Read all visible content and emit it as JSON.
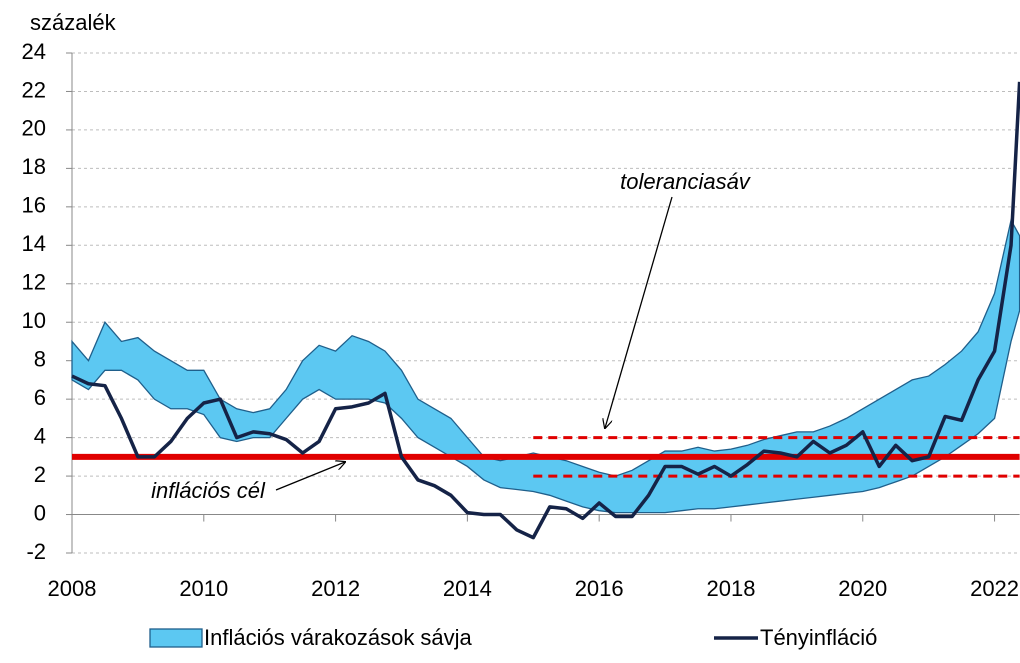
{
  "chart_data": {
    "type": "band-line",
    "y_unit": "százalék",
    "xlim": [
      2008,
      2022.38
    ],
    "xticks": [
      2008,
      2010,
      2012,
      2014,
      2016,
      2018,
      2020,
      2022
    ],
    "ylim": [
      -2,
      24
    ],
    "yticks": [
      -2,
      0,
      2,
      4,
      6,
      8,
      10,
      12,
      14,
      16,
      18,
      20,
      22,
      24
    ],
    "grid": true,
    "x": [
      2008,
      2008.25,
      2008.5,
      2008.75,
      2009,
      2009.25,
      2009.5,
      2009.75,
      2010,
      2010.25,
      2010.5,
      2010.75,
      2011,
      2011.25,
      2011.5,
      2011.75,
      2012,
      2012.25,
      2012.5,
      2012.75,
      2013,
      2013.25,
      2013.5,
      2013.75,
      2014,
      2014.25,
      2014.5,
      2014.75,
      2015,
      2015.25,
      2015.5,
      2015.75,
      2016,
      2016.25,
      2016.5,
      2016.75,
      2017,
      2017.25,
      2017.5,
      2017.75,
      2018,
      2018.25,
      2018.5,
      2018.75,
      2019,
      2019.25,
      2019.5,
      2019.75,
      2020,
      2020.25,
      2020.5,
      2020.75,
      2021,
      2021.25,
      2021.5,
      2021.75,
      2022,
      2022.25,
      2022.38
    ],
    "series": [
      {
        "name": "Inflációs várakozások sávja",
        "kind": "band",
        "color": "#5cc8f2",
        "edge_color": "#1f5f8b",
        "upper": [
          9.0,
          8.0,
          10.0,
          9.0,
          9.2,
          8.5,
          8.0,
          7.5,
          7.5,
          6.0,
          5.5,
          5.3,
          5.5,
          6.5,
          8.0,
          8.8,
          8.5,
          9.3,
          9.0,
          8.5,
          7.5,
          6.0,
          5.5,
          5.0,
          4.0,
          3.0,
          2.8,
          3.0,
          3.2,
          3.0,
          2.8,
          2.5,
          2.2,
          2.0,
          2.3,
          2.8,
          3.3,
          3.3,
          3.5,
          3.3,
          3.4,
          3.6,
          3.9,
          4.1,
          4.3,
          4.3,
          4.6,
          5.0,
          5.5,
          6.0,
          6.5,
          7.0,
          7.2,
          7.8,
          8.5,
          9.5,
          11.5,
          15.3,
          14.5
        ],
        "lower": [
          7.0,
          6.5,
          7.5,
          7.5,
          7.0,
          6.0,
          5.5,
          5.5,
          5.2,
          4.0,
          3.8,
          4.0,
          4.0,
          5.0,
          6.0,
          6.5,
          6.0,
          6.0,
          6.0,
          5.8,
          5.0,
          4.0,
          3.5,
          3.0,
          2.5,
          1.8,
          1.4,
          1.3,
          1.2,
          1.0,
          0.7,
          0.4,
          0.2,
          0.1,
          0.1,
          0.1,
          0.1,
          0.2,
          0.3,
          0.3,
          0.4,
          0.5,
          0.6,
          0.7,
          0.8,
          0.9,
          1.0,
          1.1,
          1.2,
          1.4,
          1.7,
          2.0,
          2.5,
          3.0,
          3.6,
          4.2,
          5.0,
          9.0,
          10.6
        ]
      },
      {
        "name": "Tényinfláció",
        "kind": "line",
        "color": "#152347",
        "values": [
          7.2,
          6.8,
          6.7,
          5.0,
          3.0,
          3.0,
          3.8,
          5.0,
          5.8,
          6.0,
          4.0,
          4.3,
          4.2,
          3.9,
          3.2,
          3.8,
          5.5,
          5.6,
          5.8,
          6.3,
          3.0,
          1.8,
          1.5,
          1.0,
          0.1,
          0.0,
          0.0,
          -0.8,
          -1.2,
          0.4,
          0.3,
          -0.2,
          0.6,
          -0.1,
          -0.1,
          1.0,
          2.5,
          2.5,
          2.1,
          2.5,
          2.0,
          2.6,
          3.3,
          3.2,
          3.0,
          3.8,
          3.2,
          3.6,
          4.3,
          2.5,
          3.6,
          2.8,
          3.0,
          5.1,
          4.9,
          7.0,
          8.5,
          14.0,
          22.5
        ]
      }
    ],
    "target": {
      "label": "inflációs cél",
      "value": 3,
      "color": "#e00000"
    },
    "tolerance": {
      "label": "toleranciasáv",
      "values": [
        2,
        4
      ],
      "start": 2015,
      "color": "#e00000"
    }
  }
}
